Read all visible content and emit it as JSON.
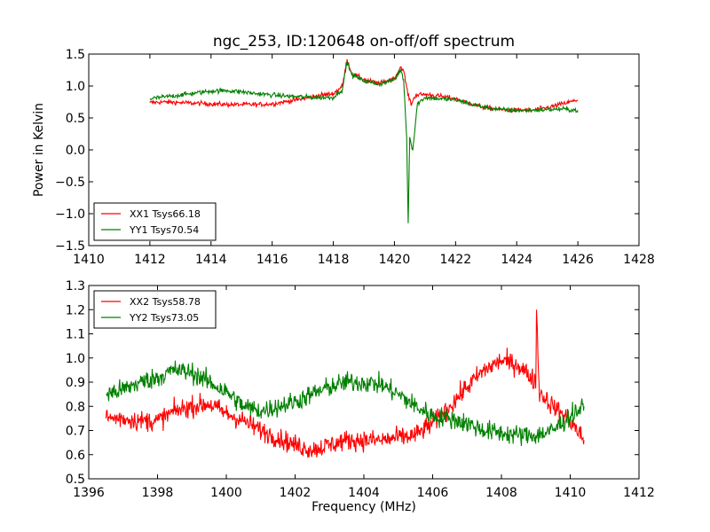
{
  "chart_data": [
    {
      "type": "line",
      "title": "ngc_253, ID:120648 on-off/off spectrum",
      "xlabel": "",
      "ylabel": "Power in Kelvin",
      "xlim": [
        1410,
        1428
      ],
      "ylim": [
        -1.5,
        1.5
      ],
      "xticks": [
        "1410",
        "1412",
        "1414",
        "1416",
        "1418",
        "1420",
        "1422",
        "1424",
        "1426",
        "1428"
      ],
      "yticks": [
        "−1.5",
        "−1.0",
        "−0.5",
        "0.0",
        "0.5",
        "1.0",
        "1.5"
      ],
      "legend_position": "lower-left",
      "grid": false,
      "series": [
        {
          "name": "XX1 Tsys66.18",
          "color": "#ff0000",
          "x": [
            1412.0,
            1412.5,
            1413.0,
            1413.5,
            1414.0,
            1414.5,
            1415.0,
            1415.5,
            1416.0,
            1416.5,
            1417.0,
            1417.5,
            1418.0,
            1418.3,
            1418.45,
            1418.6,
            1419.0,
            1419.5,
            1420.0,
            1420.2,
            1420.3,
            1420.45,
            1420.55,
            1420.7,
            1421.0,
            1421.5,
            1422.0,
            1422.5,
            1423.0,
            1423.5,
            1424.0,
            1424.5,
            1425.0,
            1425.5,
            1426.0
          ],
          "y": [
            0.74,
            0.75,
            0.74,
            0.73,
            0.72,
            0.71,
            0.71,
            0.71,
            0.72,
            0.76,
            0.8,
            0.85,
            0.88,
            1.0,
            1.42,
            1.2,
            1.1,
            1.04,
            1.12,
            1.3,
            1.24,
            0.85,
            0.72,
            0.86,
            0.87,
            0.84,
            0.8,
            0.72,
            0.66,
            0.63,
            0.62,
            0.62,
            0.66,
            0.72,
            0.78
          ]
        },
        {
          "name": "YY1 Tsys70.54",
          "color": "#008000",
          "x": [
            1412.0,
            1412.5,
            1413.0,
            1413.5,
            1414.0,
            1414.5,
            1415.0,
            1415.5,
            1416.0,
            1416.5,
            1417.0,
            1417.5,
            1418.0,
            1418.3,
            1418.45,
            1418.6,
            1419.0,
            1419.5,
            1420.0,
            1420.2,
            1420.3,
            1420.4,
            1420.45,
            1420.5,
            1420.6,
            1420.75,
            1421.0,
            1421.5,
            1422.0,
            1422.5,
            1423.0,
            1423.5,
            1424.0,
            1424.5,
            1425.0,
            1425.5,
            1426.0
          ],
          "y": [
            0.8,
            0.83,
            0.86,
            0.89,
            0.92,
            0.93,
            0.91,
            0.88,
            0.86,
            0.84,
            0.83,
            0.82,
            0.82,
            0.95,
            1.38,
            1.18,
            1.08,
            1.03,
            1.1,
            1.25,
            1.1,
            0.2,
            -1.15,
            0.2,
            0.0,
            0.72,
            0.82,
            0.8,
            0.78,
            0.72,
            0.66,
            0.63,
            0.62,
            0.62,
            0.63,
            0.64,
            0.62
          ]
        }
      ]
    },
    {
      "type": "line",
      "title": "",
      "xlabel": "Frequency (MHz)",
      "ylabel": "",
      "xlim": [
        1396,
        1412
      ],
      "ylim": [
        0.5,
        1.3
      ],
      "xticks": [
        "1396",
        "1398",
        "1400",
        "1402",
        "1404",
        "1406",
        "1408",
        "1410",
        "1412"
      ],
      "yticks": [
        "0.5",
        "0.6",
        "0.7",
        "0.8",
        "0.9",
        "1.0",
        "1.1",
        "1.2",
        "1.3"
      ],
      "legend_position": "upper-left",
      "grid": false,
      "series": [
        {
          "name": "XX2 Tsys58.78",
          "color": "#ff0000",
          "x": [
            1396.5,
            1397.0,
            1397.5,
            1398.0,
            1398.5,
            1399.0,
            1399.5,
            1400.0,
            1400.5,
            1401.0,
            1401.5,
            1402.0,
            1402.5,
            1403.0,
            1403.5,
            1404.0,
            1404.5,
            1405.0,
            1405.5,
            1406.0,
            1406.5,
            1407.0,
            1407.5,
            1408.0,
            1408.5,
            1409.0,
            1409.02,
            1409.1,
            1409.5,
            1410.0,
            1410.4
          ],
          "y": [
            0.75,
            0.75,
            0.74,
            0.74,
            0.78,
            0.8,
            0.81,
            0.77,
            0.74,
            0.7,
            0.67,
            0.64,
            0.62,
            0.64,
            0.66,
            0.66,
            0.66,
            0.67,
            0.68,
            0.73,
            0.8,
            0.88,
            0.95,
            0.99,
            0.97,
            0.9,
            1.2,
            0.86,
            0.8,
            0.74,
            0.66
          ]
        },
        {
          "name": "YY2 Tsys73.05",
          "color": "#008000",
          "x": [
            1396.5,
            1397.0,
            1397.5,
            1398.0,
            1398.5,
            1399.0,
            1399.5,
            1400.0,
            1400.5,
            1401.0,
            1401.5,
            1402.0,
            1402.5,
            1403.0,
            1403.5,
            1404.0,
            1404.5,
            1405.0,
            1405.5,
            1406.0,
            1406.5,
            1407.0,
            1407.5,
            1408.0,
            1408.5,
            1409.0,
            1409.5,
            1410.0,
            1410.4
          ],
          "y": [
            0.85,
            0.87,
            0.9,
            0.92,
            0.95,
            0.94,
            0.9,
            0.86,
            0.8,
            0.78,
            0.8,
            0.82,
            0.85,
            0.88,
            0.9,
            0.9,
            0.89,
            0.85,
            0.8,
            0.76,
            0.75,
            0.73,
            0.7,
            0.69,
            0.68,
            0.68,
            0.7,
            0.76,
            0.8
          ]
        }
      ]
    }
  ]
}
